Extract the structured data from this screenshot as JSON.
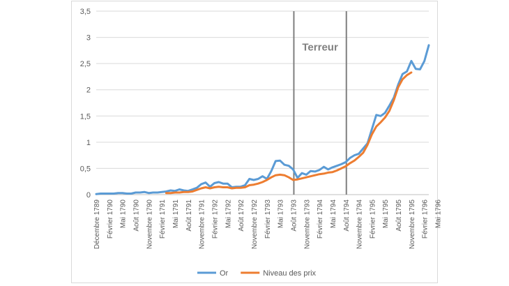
{
  "chart_data": {
    "type": "line",
    "ylim": [
      0,
      3.5
    ],
    "y_ticks": [
      "0",
      "0,5",
      "1",
      "1,5",
      "2",
      "2,5",
      "3",
      "3,5"
    ],
    "y_tick_values": [
      0,
      0.5,
      1,
      1.5,
      2,
      2.5,
      3,
      3.5
    ],
    "x_tick_labels": [
      "Décembre 1789",
      "Février 1790",
      "Mai 1790",
      "Août 1790",
      "Novembre 1790",
      "Février 1791",
      "Mai 1791",
      "Août 1791",
      "Novembre 1791",
      "Février 1792",
      "Mai 1792",
      "Août 1792",
      "Novembre 1792",
      "Février 1793",
      "Mai 1793",
      "Août 1793",
      "Novembre 1793",
      "Février 1794",
      "Mai 1794",
      "Août 1794",
      "Novembre 1794",
      "Février 1795",
      "Mai 1795",
      "Août 1795",
      "Novembre 1795",
      "Février 1796",
      "Mai 1796"
    ],
    "annotation": {
      "text": "Terreur",
      "start_tick": "Août 1793",
      "end_tick": "Août 1794"
    },
    "grid": true,
    "legend_position": "bottom",
    "series": [
      {
        "name": "Or",
        "color": "#5b9bd5",
        "points": [
          [
            0,
            0.01
          ],
          [
            1,
            0.02
          ],
          [
            2,
            0.02
          ],
          [
            3,
            0.02
          ],
          [
            4,
            0.02
          ],
          [
            5,
            0.03
          ],
          [
            6,
            0.03
          ],
          [
            7,
            0.02
          ],
          [
            8,
            0.02
          ],
          [
            9,
            0.04
          ],
          [
            10,
            0.04
          ],
          [
            11,
            0.05
          ],
          [
            12,
            0.03
          ],
          [
            13,
            0.04
          ],
          [
            14,
            0.04
          ],
          [
            15,
            0.05
          ],
          [
            16,
            0.06
          ],
          [
            17,
            0.08
          ],
          [
            18,
            0.07
          ],
          [
            19,
            0.1
          ],
          [
            20,
            0.08
          ],
          [
            21,
            0.07
          ],
          [
            22,
            0.1
          ],
          [
            23,
            0.13
          ],
          [
            24,
            0.2
          ],
          [
            25,
            0.23
          ],
          [
            26,
            0.15
          ],
          [
            27,
            0.22
          ],
          [
            28,
            0.24
          ],
          [
            29,
            0.21
          ],
          [
            30,
            0.21
          ],
          [
            31,
            0.14
          ],
          [
            32,
            0.15
          ],
          [
            33,
            0.15
          ],
          [
            34,
            0.18
          ],
          [
            35,
            0.3
          ],
          [
            36,
            0.28
          ],
          [
            37,
            0.3
          ],
          [
            38,
            0.35
          ],
          [
            39,
            0.3
          ],
          [
            40,
            0.45
          ],
          [
            41,
            0.64
          ],
          [
            42,
            0.65
          ],
          [
            43,
            0.57
          ],
          [
            44,
            0.55
          ],
          [
            45,
            0.48
          ],
          [
            46,
            0.32
          ],
          [
            47,
            0.41
          ],
          [
            48,
            0.38
          ],
          [
            49,
            0.45
          ],
          [
            50,
            0.44
          ],
          [
            51,
            0.47
          ],
          [
            52,
            0.53
          ],
          [
            53,
            0.48
          ],
          [
            54,
            0.52
          ],
          [
            55,
            0.55
          ],
          [
            56,
            0.58
          ],
          [
            57,
            0.62
          ],
          [
            58,
            0.7
          ],
          [
            59,
            0.75
          ],
          [
            60,
            0.78
          ],
          [
            61,
            0.88
          ],
          [
            62,
            0.98
          ],
          [
            63,
            1.25
          ],
          [
            64,
            1.52
          ],
          [
            65,
            1.5
          ],
          [
            66,
            1.56
          ],
          [
            67,
            1.7
          ],
          [
            68,
            1.85
          ],
          [
            69,
            2.1
          ],
          [
            70,
            2.3
          ],
          [
            71,
            2.35
          ],
          [
            72,
            2.55
          ],
          [
            73,
            2.4
          ],
          [
            74,
            2.39
          ],
          [
            75,
            2.55
          ],
          [
            76,
            2.85
          ]
        ]
      },
      {
        "name": "Niveau des prix",
        "color": "#ed7d31",
        "points": [
          [
            16,
            0.03
          ],
          [
            17,
            0.03
          ],
          [
            18,
            0.04
          ],
          [
            19,
            0.04
          ],
          [
            20,
            0.05
          ],
          [
            21,
            0.05
          ],
          [
            22,
            0.06
          ],
          [
            23,
            0.09
          ],
          [
            24,
            0.12
          ],
          [
            25,
            0.14
          ],
          [
            26,
            0.12
          ],
          [
            27,
            0.14
          ],
          [
            28,
            0.15
          ],
          [
            29,
            0.14
          ],
          [
            30,
            0.14
          ],
          [
            31,
            0.12
          ],
          [
            32,
            0.13
          ],
          [
            33,
            0.13
          ],
          [
            34,
            0.14
          ],
          [
            35,
            0.18
          ],
          [
            36,
            0.19
          ],
          [
            37,
            0.21
          ],
          [
            38,
            0.24
          ],
          [
            39,
            0.28
          ],
          [
            40,
            0.33
          ],
          [
            41,
            0.37
          ],
          [
            42,
            0.38
          ],
          [
            43,
            0.37
          ],
          [
            44,
            0.33
          ],
          [
            45,
            0.28
          ],
          [
            46,
            0.29
          ],
          [
            47,
            0.31
          ],
          [
            48,
            0.33
          ],
          [
            49,
            0.35
          ],
          [
            50,
            0.37
          ],
          [
            51,
            0.39
          ],
          [
            52,
            0.4
          ],
          [
            53,
            0.42
          ],
          [
            54,
            0.43
          ],
          [
            55,
            0.46
          ],
          [
            56,
            0.5
          ],
          [
            57,
            0.54
          ],
          [
            58,
            0.6
          ],
          [
            59,
            0.65
          ],
          [
            60,
            0.72
          ],
          [
            61,
            0.8
          ],
          [
            62,
            0.95
          ],
          [
            63,
            1.15
          ],
          [
            64,
            1.3
          ],
          [
            65,
            1.38
          ],
          [
            66,
            1.47
          ],
          [
            67,
            1.6
          ],
          [
            68,
            1.8
          ],
          [
            69,
            2.05
          ],
          [
            70,
            2.2
          ],
          [
            71,
            2.28
          ],
          [
            72,
            2.33
          ]
        ]
      }
    ]
  }
}
